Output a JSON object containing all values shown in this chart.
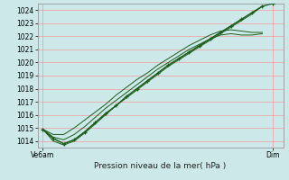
{
  "title": "Pression niveau de la mer( hPa )",
  "ymin": 1013.5,
  "ymax": 1024.5,
  "yticks": [
    1014,
    1015,
    1016,
    1017,
    1018,
    1019,
    1020,
    1021,
    1022,
    1023,
    1024
  ],
  "xmin": 0,
  "xmax": 47,
  "xtick_labels": [
    "Ve6am",
    "Dim"
  ],
  "xtick_positions": [
    1,
    45
  ],
  "background_color": "#cce8e8",
  "grid_color": "#ff8888",
  "line_color": "#1a5c1a",
  "marker_color": "#1a5c1a",
  "series": [
    [
      1014.9,
      1014.2,
      1013.8,
      1014.1,
      1014.7,
      1015.4,
      1016.1,
      1016.7,
      1017.4,
      1018.0,
      1018.6,
      1019.2,
      1019.8,
      1020.3,
      1020.8,
      1021.3,
      1021.8,
      1022.3,
      1022.8,
      1023.3,
      1023.8,
      1024.3
    ],
    [
      1014.9,
      1014.0,
      1013.7,
      1014.0,
      1014.6,
      1015.3,
      1016.0,
      1016.7,
      1017.3,
      1017.9,
      1018.5,
      1019.1,
      1019.7,
      1020.2,
      1020.7,
      1021.2,
      1021.7,
      1022.2,
      1022.7,
      1023.2,
      1023.7,
      1024.3
    ],
    [
      1014.9,
      1014.5,
      1014.5,
      1015.0,
      1015.6,
      1016.2,
      1016.8,
      1017.5,
      1018.1,
      1018.7,
      1019.2,
      1019.8,
      1020.3,
      1020.8,
      1021.3,
      1021.7,
      1022.1,
      1022.4,
      1022.5,
      1022.4,
      1022.3,
      1022.3
    ],
    [
      1014.9,
      1014.3,
      1014.1,
      1014.5,
      1015.1,
      1015.8,
      1016.5,
      1017.1,
      1017.7,
      1018.3,
      1018.9,
      1019.5,
      1020.0,
      1020.5,
      1021.0,
      1021.4,
      1021.8,
      1022.1,
      1022.2,
      1022.1,
      1022.1,
      1022.2
    ]
  ],
  "x_series": [
    1,
    3,
    5,
    7,
    9,
    11,
    13,
    15,
    17,
    19,
    21,
    23,
    25,
    27,
    29,
    31,
    33,
    35,
    37,
    39,
    41,
    43
  ],
  "x_marker_series": [
    1,
    3,
    5,
    7,
    9,
    11,
    13,
    15,
    17,
    19,
    21,
    23,
    25,
    27,
    29,
    31,
    33,
    35,
    37,
    39,
    41,
    43,
    45
  ],
  "marker_values": [
    1014.9,
    1014.2,
    1013.8,
    1014.1,
    1014.7,
    1015.4,
    1016.1,
    1016.7,
    1017.4,
    1018.0,
    1018.6,
    1019.2,
    1019.8,
    1020.3,
    1020.8,
    1021.3,
    1021.8,
    1022.3,
    1022.8,
    1023.3,
    1023.8,
    1024.3,
    1024.5
  ]
}
